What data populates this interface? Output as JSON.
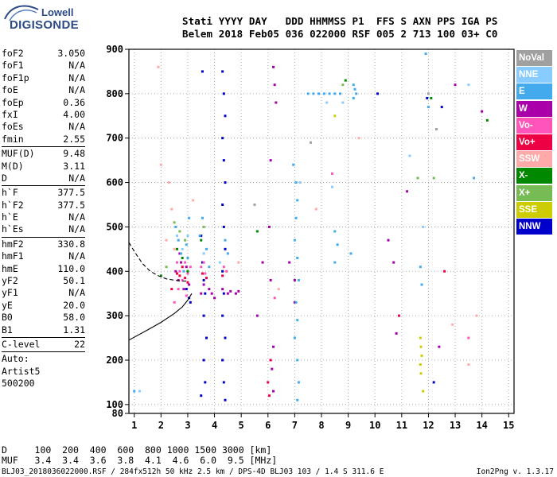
{
  "logo": {
    "line1": "Lowell",
    "line2": "DIGISONDE"
  },
  "header": {
    "line1": "Stati YYYY DAY   DDD HHMMSS P1  FFS S AXN PPS IGA PS",
    "line2": "Belem 2018 Feb05 036 022000 RSF 005 2 713 100 03+ C0"
  },
  "params": [
    {
      "name": "foF2",
      "value": "3.050"
    },
    {
      "name": "foF1",
      "value": "N/A"
    },
    {
      "name": "foF1p",
      "value": "N/A"
    },
    {
      "name": "foE",
      "value": "N/A"
    },
    {
      "name": "foEp",
      "value": "0.36"
    },
    {
      "name": "fxI",
      "value": "4.00"
    },
    {
      "name": "foEs",
      "value": "N/A"
    },
    {
      "name": "fmin",
      "value": "2.55",
      "sep": true
    },
    {
      "name": "MUF(D)",
      "value": "9.48"
    },
    {
      "name": "M(D)",
      "value": "3.11"
    },
    {
      "name": "D",
      "value": "N/A",
      "sep": true
    },
    {
      "name": "h`F",
      "value": "377.5"
    },
    {
      "name": "h`F2",
      "value": "377.5"
    },
    {
      "name": "h`E",
      "value": "N/A"
    },
    {
      "name": "h`Es",
      "value": "N/A",
      "sep": true
    },
    {
      "name": "hmF2",
      "value": "330.8"
    },
    {
      "name": "hmF1",
      "value": "N/A"
    },
    {
      "name": "hmE",
      "value": "110.0"
    },
    {
      "name": "yF2",
      "value": "50.1"
    },
    {
      "name": "yF1",
      "value": "N/A"
    },
    {
      "name": "yE",
      "value": "20.0"
    },
    {
      "name": "B0",
      "value": "58.0"
    },
    {
      "name": "B1",
      "value": "1.31",
      "sep": true
    },
    {
      "name": "C-level",
      "value": "22",
      "sep": true
    }
  ],
  "auto": [
    "Auto:",
    "Artist5",
    "500200"
  ],
  "legend": [
    {
      "label": "NoVal",
      "color": "#a0a0a0"
    },
    {
      "label": "NNE",
      "color": "#88ccff"
    },
    {
      "label": "E",
      "color": "#44aaee"
    },
    {
      "label": "W",
      "color": "#aa00aa"
    },
    {
      "label": "Vo-",
      "color": "#ff55bb"
    },
    {
      "label": "Vo+",
      "color": "#ee0044"
    },
    {
      "label": "SSW",
      "color": "#ffaaaa"
    },
    {
      "label": "X-",
      "color": "#008800"
    },
    {
      "label": "X+",
      "color": "#77bb55"
    },
    {
      "label": "SSE",
      "color": "#cccc00"
    },
    {
      "label": "NNW",
      "color": "#0000cc"
    }
  ],
  "mufTable": {
    "line1": "D     100  200  400  600  800 1000 1500 3000 [km]",
    "line2": "MUF   3.4  3.4  3.6  3.8  4.1  4.6  6.0  9.5 [MHz]"
  },
  "footer": {
    "left": "BLJ03_2018036022000.RSF / 284fx512h 50 kHz 2.5 km / DPS-4D BLJ03 103 / 1.4 S 311.6 E",
    "right": "Ion2Png v. 1.3.17"
  },
  "chart_data": {
    "type": "scatter",
    "x_ticks": [
      1,
      2,
      3,
      4,
      5,
      6,
      7,
      8,
      9,
      10,
      11,
      12,
      13,
      14,
      15
    ],
    "y_ticks": [
      80,
      100,
      200,
      300,
      400,
      500,
      600,
      700,
      800,
      900
    ],
    "xlim": [
      0.8,
      15.2
    ],
    "ylim": [
      80,
      900
    ],
    "grid": true,
    "series": [
      {
        "color_key": "NNW",
        "points": [
          [
            2.95,
            360
          ],
          [
            3.05,
            340
          ],
          [
            3.1,
            330
          ],
          [
            3.5,
            480
          ],
          [
            3.55,
            420
          ],
          [
            3.6,
            380
          ],
          [
            3.65,
            350
          ],
          [
            3.6,
            300
          ],
          [
            3.7,
            250
          ],
          [
            3.6,
            200
          ],
          [
            3.65,
            150
          ],
          [
            3.5,
            120
          ],
          [
            4.3,
            850
          ],
          [
            4.35,
            800
          ],
          [
            4.4,
            750
          ],
          [
            4.3,
            700
          ],
          [
            4.35,
            650
          ],
          [
            4.4,
            600
          ],
          [
            4.3,
            550
          ],
          [
            4.35,
            500
          ],
          [
            4.4,
            450
          ],
          [
            4.3,
            400
          ],
          [
            4.35,
            350
          ],
          [
            4.3,
            300
          ],
          [
            4.4,
            250
          ],
          [
            4.3,
            200
          ],
          [
            4.35,
            150
          ],
          [
            4.4,
            110
          ],
          [
            3.55,
            850
          ],
          [
            11.95,
            790
          ],
          [
            12.5,
            770
          ],
          [
            12.2,
            150
          ],
          [
            10.1,
            800
          ]
        ]
      },
      {
        "color_key": "W",
        "points": [
          [
            2.55,
            400
          ],
          [
            2.65,
            380
          ],
          [
            2.75,
            420
          ],
          [
            2.85,
            360
          ],
          [
            2.95,
            410
          ],
          [
            3.05,
            370
          ],
          [
            2.7,
            440
          ],
          [
            3.5,
            350
          ],
          [
            3.6,
            370
          ],
          [
            3.8,
            360
          ],
          [
            3.9,
            350
          ],
          [
            4.0,
            340
          ],
          [
            4.3,
            360
          ],
          [
            4.5,
            350
          ],
          [
            4.6,
            355
          ],
          [
            4.8,
            350
          ],
          [
            4.9,
            355
          ],
          [
            5.6,
            300
          ],
          [
            5.8,
            420
          ],
          [
            6.2,
            860
          ],
          [
            6.25,
            820
          ],
          [
            6.3,
            780
          ],
          [
            6.1,
            650
          ],
          [
            6.05,
            500
          ],
          [
            6.1,
            380
          ],
          [
            6.2,
            230
          ],
          [
            6.15,
            180
          ],
          [
            6.2,
            130
          ],
          [
            6.8,
            420
          ],
          [
            7.0,
            380
          ],
          [
            7.0,
            330
          ],
          [
            10.5,
            470
          ],
          [
            10.7,
            420
          ],
          [
            11.2,
            580
          ],
          [
            10.8,
            260
          ],
          [
            12.4,
            230
          ],
          [
            13.0,
            820
          ],
          [
            14.0,
            760
          ]
        ]
      },
      {
        "color_key": "E",
        "points": [
          [
            2.55,
            500
          ],
          [
            2.65,
            470
          ],
          [
            2.75,
            440
          ],
          [
            2.85,
            400
          ],
          [
            2.95,
            460
          ],
          [
            3.05,
            520
          ],
          [
            3.0,
            430
          ],
          [
            3.45,
            480
          ],
          [
            3.55,
            520
          ],
          [
            3.7,
            450
          ],
          [
            3.8,
            410
          ],
          [
            4.4,
            470
          ],
          [
            4.5,
            440
          ],
          [
            6.95,
            640
          ],
          [
            7.05,
            600
          ],
          [
            7.1,
            560
          ],
          [
            7.05,
            520
          ],
          [
            7.0,
            470
          ],
          [
            7.1,
            430
          ],
          [
            7.15,
            380
          ],
          [
            7.05,
            330
          ],
          [
            7.1,
            290
          ],
          [
            7.0,
            250
          ],
          [
            7.1,
            200
          ],
          [
            7.15,
            150
          ],
          [
            7.1,
            110
          ],
          [
            7.5,
            800
          ],
          [
            7.7,
            800
          ],
          [
            7.9,
            800
          ],
          [
            8.1,
            800
          ],
          [
            8.3,
            800
          ],
          [
            8.5,
            800
          ],
          [
            8.7,
            800
          ],
          [
            9.2,
            820
          ],
          [
            9.25,
            810
          ],
          [
            9.3,
            800
          ],
          [
            9.2,
            790
          ],
          [
            8.5,
            490
          ],
          [
            8.6,
            460
          ],
          [
            8.5,
            420
          ],
          [
            9.1,
            440
          ],
          [
            11.7,
            410
          ],
          [
            11.75,
            370
          ],
          [
            12.0,
            770
          ],
          [
            11.9,
            890
          ],
          [
            13.7,
            610
          ],
          [
            1.0,
            130
          ]
        ]
      },
      {
        "color_key": "NNE",
        "points": [
          [
            2.6,
            480
          ],
          [
            2.8,
            450
          ],
          [
            3.0,
            480
          ],
          [
            3.6,
            440
          ],
          [
            4.2,
            420
          ],
          [
            7.2,
            600
          ],
          [
            8.2,
            780
          ],
          [
            8.8,
            780
          ],
          [
            11.3,
            660
          ],
          [
            11.8,
            500
          ],
          [
            1.2,
            130
          ],
          [
            13.5,
            820
          ],
          [
            8.4,
            590
          ]
        ]
      },
      {
        "color_key": "Vo-",
        "points": [
          [
            2.6,
            420
          ],
          [
            2.7,
            400
          ],
          [
            2.8,
            380
          ],
          [
            2.9,
            420
          ],
          [
            3.0,
            395
          ],
          [
            3.1,
            410
          ],
          [
            2.65,
            360
          ],
          [
            2.95,
            345
          ],
          [
            3.5,
            410
          ],
          [
            3.6,
            420
          ],
          [
            3.65,
            395
          ],
          [
            4.35,
            410
          ],
          [
            4.45,
            400
          ],
          [
            2.5,
            330
          ],
          [
            8.4,
            620
          ],
          [
            13.5,
            250
          ],
          [
            6.25,
            340
          ]
        ]
      },
      {
        "color_key": "Vo+",
        "points": [
          [
            2.7,
            390
          ],
          [
            2.8,
            410
          ],
          [
            2.9,
            385
          ],
          [
            3.0,
            375
          ],
          [
            2.6,
            395
          ],
          [
            3.55,
            395
          ],
          [
            3.7,
            385
          ],
          [
            4.3,
            390
          ],
          [
            2.4,
            360
          ],
          [
            6.0,
            150
          ],
          [
            6.05,
            120
          ],
          [
            6.1,
            200
          ],
          [
            10.9,
            300
          ],
          [
            12.6,
            400
          ]
        ]
      },
      {
        "color_key": "SSW",
        "points": [
          [
            2.0,
            640
          ],
          [
            2.3,
            600
          ],
          [
            2.4,
            540
          ],
          [
            2.2,
            470
          ],
          [
            2.5,
            450
          ],
          [
            3.2,
            560
          ],
          [
            4.9,
            420
          ],
          [
            6.4,
            360
          ],
          [
            7.8,
            540
          ],
          [
            9.4,
            700
          ],
          [
            1.9,
            860
          ],
          [
            12.9,
            280
          ],
          [
            13.8,
            300
          ],
          [
            13.5,
            190
          ]
        ]
      },
      {
        "color_key": "X-",
        "points": [
          [
            2.6,
            450
          ],
          [
            2.8,
            430
          ],
          [
            3.0,
            400
          ],
          [
            3.5,
            470
          ],
          [
            2.0,
            390
          ],
          [
            8.9,
            830
          ],
          [
            12.1,
            790
          ],
          [
            14.2,
            740
          ],
          [
            5.6,
            490
          ]
        ]
      },
      {
        "color_key": "X+",
        "points": [
          [
            2.5,
            510
          ],
          [
            2.7,
            490
          ],
          [
            2.9,
            470
          ],
          [
            3.6,
            500
          ],
          [
            2.2,
            410
          ],
          [
            8.8,
            820
          ],
          [
            11.6,
            610
          ],
          [
            12.2,
            610
          ]
        ]
      },
      {
        "color_key": "SSE",
        "points": [
          [
            11.7,
            250
          ],
          [
            11.72,
            230
          ],
          [
            11.75,
            210
          ],
          [
            11.7,
            190
          ],
          [
            11.72,
            170
          ],
          [
            8.5,
            750
          ],
          [
            11.8,
            130
          ]
        ]
      },
      {
        "color_key": "NoVal",
        "points": [
          [
            12.0,
            800
          ],
          [
            12.3,
            720
          ],
          [
            5.5,
            550
          ],
          [
            7.6,
            690
          ]
        ]
      }
    ],
    "lines": [
      {
        "style": "solid",
        "points": [
          [
            0.8,
            245
          ],
          [
            1.5,
            268
          ],
          [
            2.0,
            285
          ],
          [
            2.5,
            305
          ],
          [
            2.8,
            320
          ],
          [
            3.0,
            335
          ],
          [
            3.15,
            350
          ]
        ]
      },
      {
        "style": "dashed",
        "points": [
          [
            0.8,
            465
          ],
          [
            1.0,
            445
          ],
          [
            1.3,
            418
          ],
          [
            1.6,
            400
          ],
          [
            1.9,
            390
          ],
          [
            2.2,
            383
          ],
          [
            2.5,
            380
          ],
          [
            2.8,
            378
          ],
          [
            3.0,
            378
          ]
        ]
      }
    ]
  }
}
